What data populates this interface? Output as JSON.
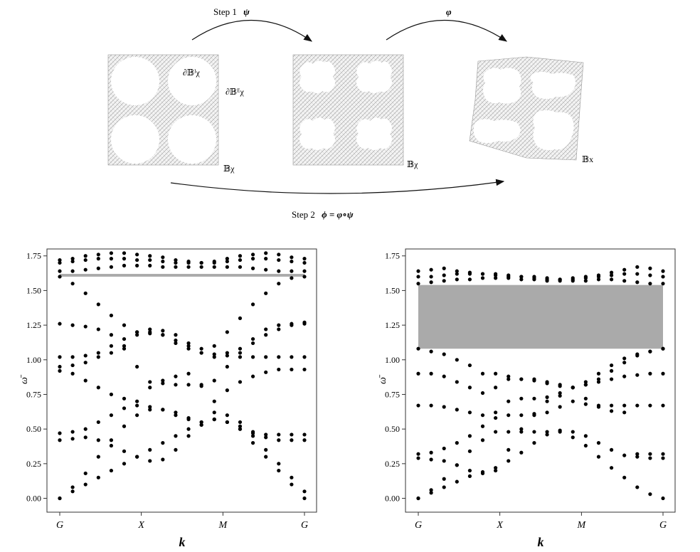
{
  "diagram": {
    "step1": {
      "text": "Step 1",
      "symbol": "ψ"
    },
    "phi": {
      "symbol": "φ"
    },
    "step2": {
      "text": "Step 2",
      "formula": "ϕ = φ∘ψ"
    },
    "panel1": {
      "label_main": "𝔹χ",
      "label_inner": "∂𝔹ᴵχ",
      "label_outer": "∂𝔹ᴱχ"
    },
    "panel2": {
      "label": "𝔹χ"
    },
    "panel3": {
      "label": "𝔹x"
    },
    "mesh_color": "#9a9a9a"
  },
  "chart_data": [
    {
      "type": "scatter",
      "ylabel": "ω̄",
      "xlabel": "k",
      "xticks": [
        "G",
        "X",
        "M",
        "G"
      ],
      "yticks": [
        "0.00",
        "0.25",
        "0.50",
        "0.75",
        "1.00",
        "1.25",
        "1.50",
        "1.75"
      ],
      "ylim": [
        -0.1,
        1.8
      ],
      "band_gap": [
        1.6,
        1.62
      ],
      "series": [
        {
          "values": [
            0.0,
            0.05,
            0.1,
            0.15,
            0.2,
            0.25,
            0.3,
            0.35,
            0.4,
            0.45,
            0.5,
            0.53,
            0.57,
            0.55,
            0.5,
            0.4,
            0.3,
            0.2,
            0.1,
            0.0
          ]
        },
        {
          "values": [
            0.0,
            0.08,
            0.18,
            0.3,
            0.42,
            0.52,
            0.6,
            0.64,
            0.64,
            0.62,
            0.58,
            0.53,
            0.57,
            0.6,
            0.55,
            0.45,
            0.35,
            0.25,
            0.15,
            0.05
          ]
        },
        {
          "values": [
            0.42,
            0.43,
            0.44,
            0.42,
            0.38,
            0.34,
            0.3,
            0.27,
            0.28,
            0.35,
            0.45,
            0.55,
            0.57,
            0.55,
            0.52,
            0.48,
            0.44,
            0.42,
            0.42,
            0.42
          ]
        },
        {
          "values": [
            0.47,
            0.48,
            0.5,
            0.55,
            0.6,
            0.65,
            0.67,
            0.66,
            0.64,
            0.6,
            0.57,
            0.55,
            0.62,
            0.55,
            0.5,
            0.47,
            0.46,
            0.46,
            0.46,
            0.46
          ]
        },
        {
          "values": [
            0.92,
            0.9,
            0.85,
            0.8,
            0.75,
            0.72,
            0.7,
            0.8,
            0.85,
            0.88,
            0.9,
            0.82,
            0.7,
            0.78,
            0.84,
            0.88,
            0.91,
            0.93,
            0.93,
            0.93
          ]
        },
        {
          "values": [
            0.95,
            0.96,
            0.98,
            1.02,
            1.05,
            1.08,
            1.2,
            1.2,
            1.18,
            1.14,
            1.1,
            1.05,
            1.02,
            1.05,
            1.08,
            1.12,
            1.18,
            1.22,
            1.25,
            1.27
          ]
        },
        {
          "values": [
            1.02,
            1.02,
            1.03,
            1.05,
            1.1,
            1.15,
            1.18,
            1.22,
            1.21,
            1.18,
            1.12,
            1.08,
            1.04,
            1.03,
            1.02,
            1.02,
            1.02,
            1.02,
            1.02,
            1.02
          ]
        },
        {
          "values": [
            1.26,
            1.25,
            1.24,
            1.22,
            1.18,
            1.1,
            0.95,
            0.84,
            0.83,
            0.82,
            0.82,
            0.81,
            0.85,
            0.95,
            1.05,
            1.15,
            1.22,
            1.25,
            1.26,
            1.26
          ]
        },
        {
          "values": [
            1.6,
            1.55,
            1.48,
            1.4,
            1.32,
            1.25,
            1.2,
            1.19,
            1.18,
            1.12,
            1.08,
            1.05,
            1.1,
            1.2,
            1.3,
            1.4,
            1.48,
            1.55,
            1.59,
            1.6
          ]
        },
        {
          "values": [
            1.64,
            1.64,
            1.65,
            1.66,
            1.67,
            1.68,
            1.68,
            1.68,
            1.67,
            1.67,
            1.67,
            1.67,
            1.67,
            1.67,
            1.67,
            1.66,
            1.65,
            1.64,
            1.64,
            1.64
          ]
        },
        {
          "values": [
            1.7,
            1.71,
            1.72,
            1.73,
            1.73,
            1.73,
            1.72,
            1.72,
            1.71,
            1.7,
            1.7,
            1.7,
            1.7,
            1.71,
            1.72,
            1.73,
            1.73,
            1.72,
            1.71,
            1.7
          ]
        },
        {
          "values": [
            1.72,
            1.73,
            1.75,
            1.76,
            1.77,
            1.77,
            1.76,
            1.75,
            1.74,
            1.72,
            1.71,
            1.7,
            1.71,
            1.73,
            1.75,
            1.76,
            1.77,
            1.76,
            1.74,
            1.73
          ]
        }
      ]
    },
    {
      "type": "scatter",
      "ylabel": "ω̄",
      "xlabel": "k",
      "xticks": [
        "G",
        "X",
        "M",
        "G"
      ],
      "yticks": [
        "0.00",
        "0.25",
        "0.50",
        "0.75",
        "1.00",
        "1.25",
        "1.50",
        "1.75"
      ],
      "ylim": [
        -0.1,
        1.8
      ],
      "band_gap": [
        1.08,
        1.54
      ],
      "series": [
        {
          "values": [
            0.0,
            0.04,
            0.08,
            0.12,
            0.16,
            0.19,
            0.22,
            0.27,
            0.33,
            0.4,
            0.46,
            0.48,
            0.44,
            0.38,
            0.3,
            0.22,
            0.15,
            0.08,
            0.03,
            0.0
          ]
        },
        {
          "values": [
            0.0,
            0.06,
            0.14,
            0.24,
            0.34,
            0.42,
            0.48,
            0.48,
            0.48,
            0.48,
            0.48,
            0.49,
            0.48,
            0.45,
            0.4,
            0.35,
            0.31,
            0.3,
            0.29,
            0.29
          ]
        },
        {
          "values": [
            0.29,
            0.28,
            0.27,
            0.24,
            0.2,
            0.18,
            0.2,
            0.35,
            0.5,
            0.6,
            0.7,
            0.76,
            0.8,
            0.72,
            0.66,
            0.63,
            0.62,
            0.32,
            0.32,
            0.32
          ]
        },
        {
          "values": [
            0.32,
            0.33,
            0.36,
            0.4,
            0.45,
            0.52,
            0.58,
            0.6,
            0.6,
            0.61,
            0.62,
            0.66,
            0.7,
            0.68,
            0.67,
            0.67,
            0.67,
            0.67,
            0.67,
            0.67
          ]
        },
        {
          "values": [
            0.67,
            0.67,
            0.66,
            0.64,
            0.62,
            0.6,
            0.62,
            0.7,
            0.72,
            0.72,
            0.73,
            0.74,
            0.8,
            0.82,
            0.84,
            0.86,
            0.88,
            0.89,
            0.9,
            0.9
          ]
        },
        {
          "values": [
            0.9,
            0.9,
            0.88,
            0.84,
            0.8,
            0.76,
            0.8,
            0.86,
            0.86,
            0.85,
            0.83,
            0.81,
            0.8,
            0.84,
            0.9,
            0.96,
            1.01,
            1.04,
            1.06,
            1.08
          ]
        },
        {
          "values": [
            1.08,
            1.06,
            1.04,
            1.0,
            0.96,
            0.9,
            0.9,
            0.88,
            0.86,
            0.86,
            0.84,
            0.82,
            0.8,
            0.82,
            0.86,
            0.92,
            0.98,
            1.03,
            1.06,
            1.08
          ]
        },
        {
          "values": [
            1.55,
            1.56,
            1.57,
            1.58,
            1.58,
            1.59,
            1.59,
            1.59,
            1.58,
            1.58,
            1.57,
            1.57,
            1.57,
            1.57,
            1.58,
            1.58,
            1.57,
            1.56,
            1.55,
            1.55
          ]
        },
        {
          "values": [
            1.6,
            1.6,
            1.61,
            1.62,
            1.62,
            1.62,
            1.61,
            1.6,
            1.6,
            1.59,
            1.58,
            1.58,
            1.58,
            1.59,
            1.6,
            1.61,
            1.62,
            1.62,
            1.61,
            1.6
          ]
        },
        {
          "values": [
            1.64,
            1.65,
            1.66,
            1.64,
            1.63,
            1.62,
            1.62,
            1.61,
            1.6,
            1.6,
            1.59,
            1.58,
            1.59,
            1.6,
            1.61,
            1.63,
            1.65,
            1.67,
            1.66,
            1.64
          ]
        }
      ]
    }
  ]
}
